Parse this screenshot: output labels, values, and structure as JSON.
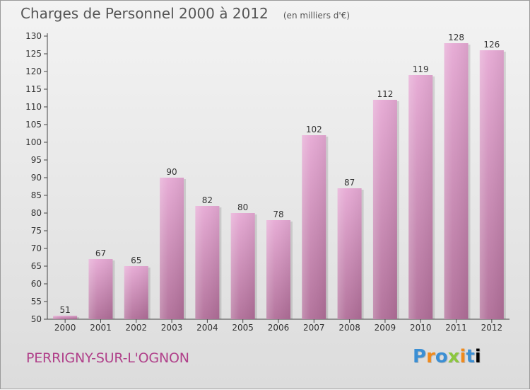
{
  "header": {
    "title": "Charges de Personnel 2000 à 2012",
    "subtitle": "(en milliers d'€)"
  },
  "footer": {
    "place": "PERRIGNY-SUR-L'OGNON",
    "logo_letters": [
      "P",
      "r",
      "o",
      "x",
      "i",
      "t",
      "i"
    ]
  },
  "colors": {
    "bar_top": "#e6a9d4",
    "bar_bottom": "#b06e98",
    "accent": "#b0408a"
  },
  "chart_data": {
    "type": "bar",
    "title": "Charges de Personnel 2000 à 2012",
    "subtitle": "(en milliers d'€)",
    "xlabel": "",
    "ylabel": "",
    "categories": [
      "2000",
      "2001",
      "2002",
      "2003",
      "2004",
      "2005",
      "2006",
      "2007",
      "2008",
      "2009",
      "2010",
      "2011",
      "2012"
    ],
    "values": [
      51,
      67,
      65,
      90,
      82,
      80,
      78,
      102,
      87,
      112,
      119,
      128,
      126
    ],
    "ylim": [
      50,
      130
    ],
    "yticks": [
      50,
      55,
      60,
      65,
      70,
      75,
      80,
      85,
      90,
      95,
      100,
      105,
      110,
      115,
      120,
      125,
      130
    ],
    "grid": false,
    "legend": "none"
  }
}
